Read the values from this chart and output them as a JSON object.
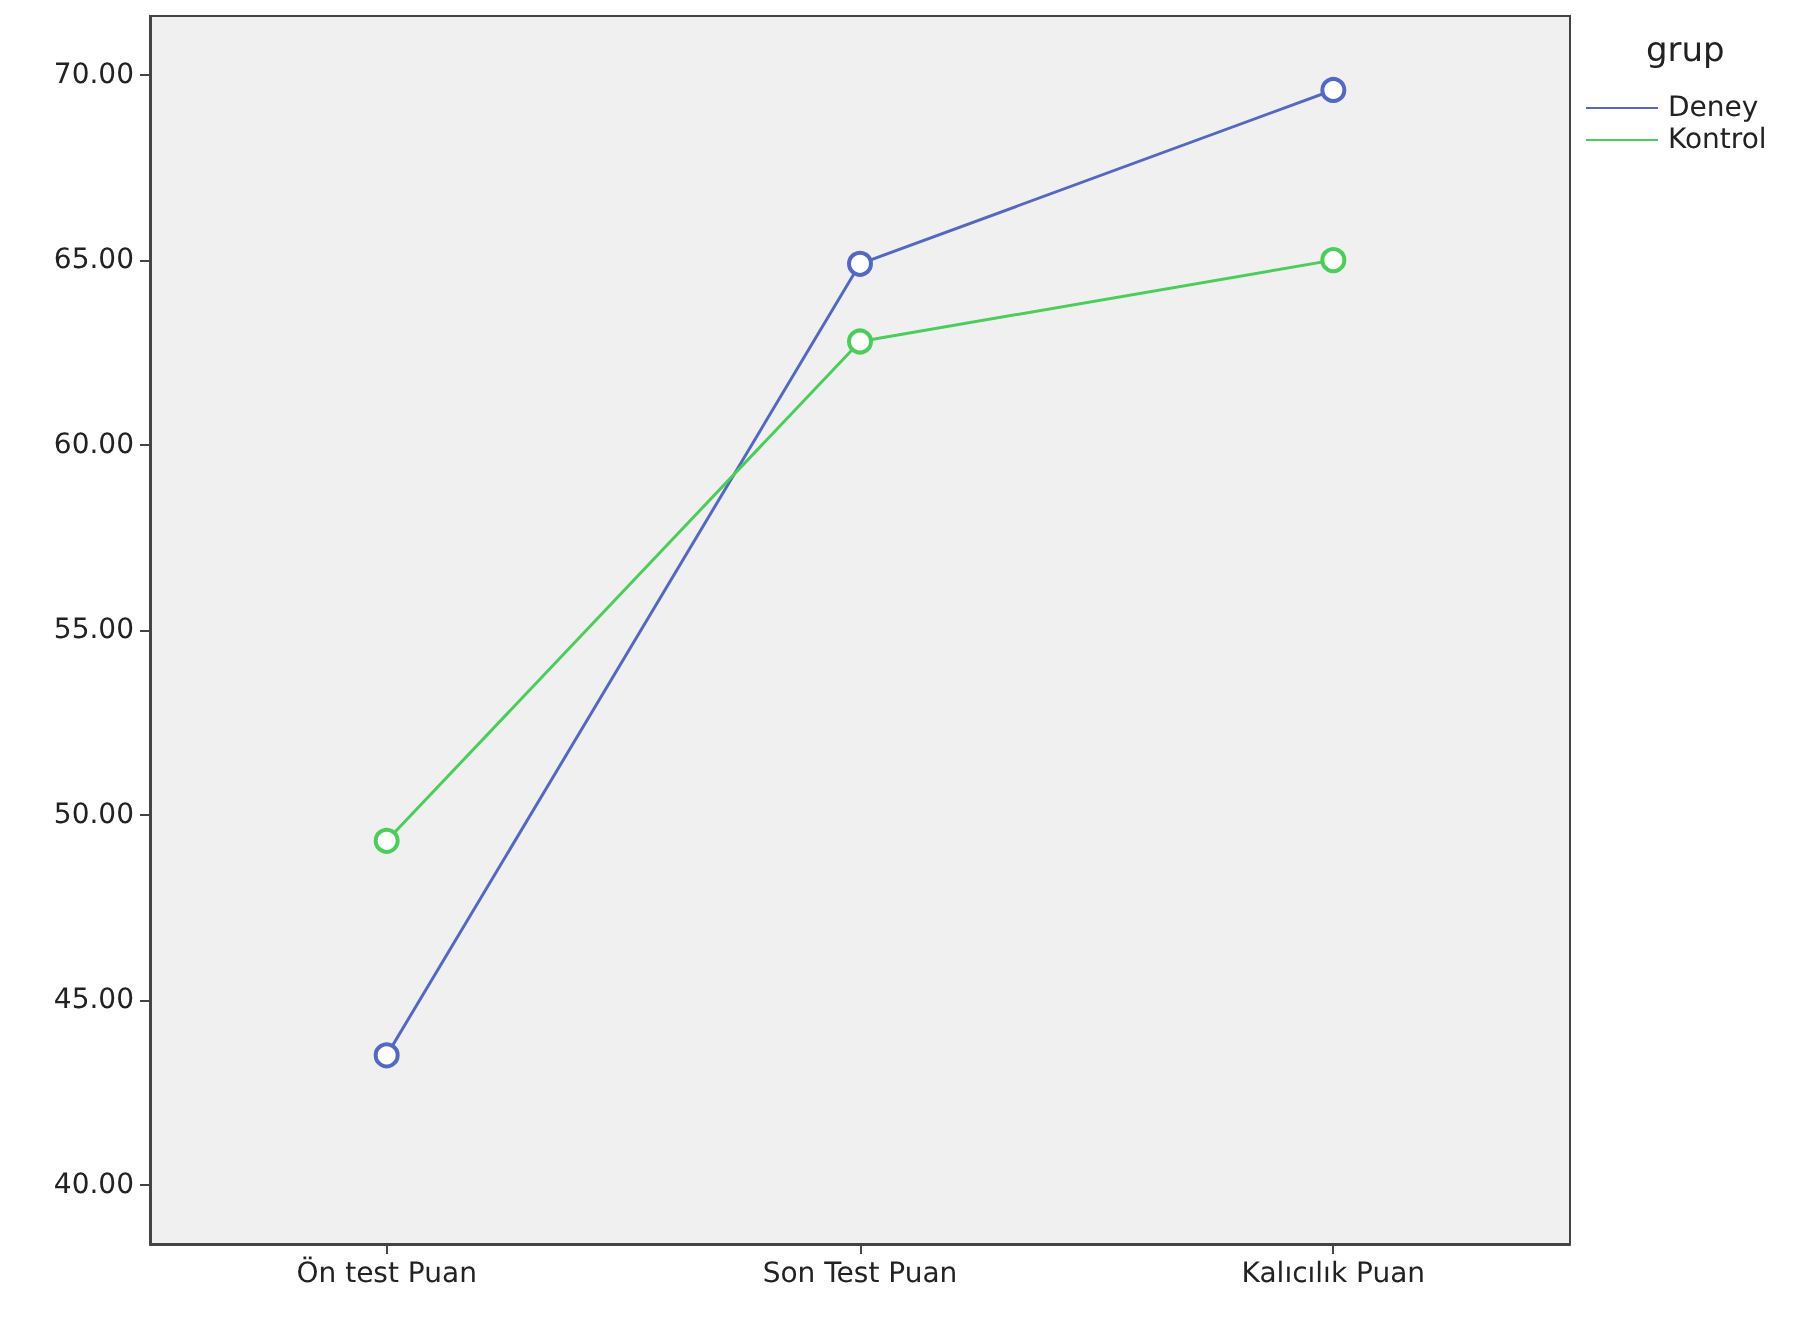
{
  "chart_data": {
    "type": "line",
    "categories": [
      "Ön test Puan",
      "Son Test Puan",
      "Kalıcılık Puan"
    ],
    "series": [
      {
        "name": "Deney",
        "color": "#5468c0",
        "values": [
          43.5,
          64.9,
          69.6
        ]
      },
      {
        "name": "Kontrol",
        "color": "#4ccc5a",
        "values": [
          49.3,
          62.8,
          65.0
        ]
      }
    ],
    "ylim": [
      38.4,
      71.6
    ],
    "yticks": [
      {
        "value": 40,
        "label": "40.00"
      },
      {
        "value": 45,
        "label": "45.00"
      },
      {
        "value": 50,
        "label": "50.00"
      },
      {
        "value": 55,
        "label": "55.00"
      },
      {
        "value": 60,
        "label": "60.00"
      },
      {
        "value": 65,
        "label": "65.00"
      },
      {
        "value": 70,
        "label": "70.00"
      }
    ],
    "legend_title": "grup",
    "legend": "top right",
    "marker": "circle",
    "line_style": "solid",
    "grid": false
  }
}
